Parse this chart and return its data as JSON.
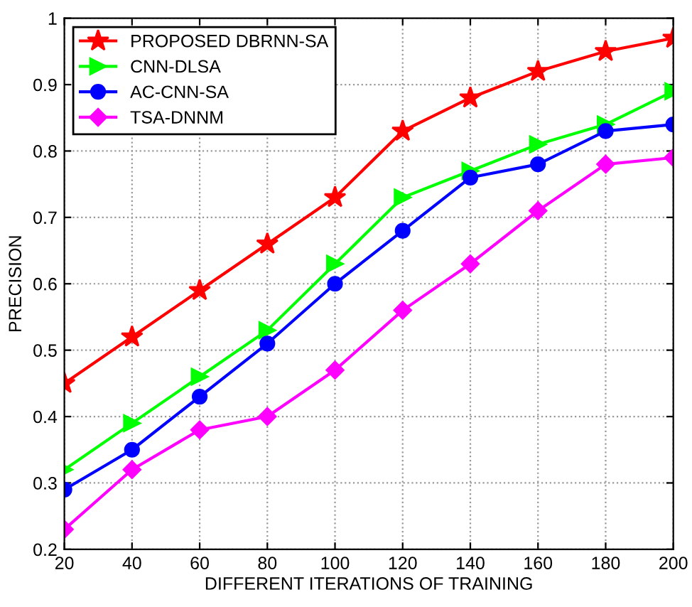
{
  "chart_data": {
    "type": "line",
    "xlabel": "DIFFERENT ITERATIONS OF TRAINING",
    "ylabel": "PRECISION",
    "x": [
      20,
      40,
      60,
      80,
      100,
      120,
      140,
      160,
      180,
      200
    ],
    "series": [
      {
        "name": "PROPOSED DBRNN-SA",
        "color": "#ff0000",
        "marker": "star",
        "values": [
          0.45,
          0.52,
          0.59,
          0.66,
          0.73,
          0.83,
          0.88,
          0.92,
          0.95,
          0.97
        ]
      },
      {
        "name": "CNN-DLSA",
        "color": "#00ff00",
        "marker": "triangle",
        "values": [
          0.32,
          0.39,
          0.46,
          0.53,
          0.63,
          0.73,
          0.77,
          0.81,
          0.84,
          0.89
        ]
      },
      {
        "name": "AC-CNN-SA",
        "color": "#0000ff",
        "marker": "circle",
        "values": [
          0.29,
          0.35,
          0.43,
          0.51,
          0.6,
          0.68,
          0.76,
          0.78,
          0.83,
          0.84
        ]
      },
      {
        "name": "TSA-DNNM",
        "color": "#ff00ff",
        "marker": "diamond",
        "values": [
          0.23,
          0.32,
          0.38,
          0.4,
          0.47,
          0.56,
          0.63,
          0.71,
          0.78,
          0.79
        ]
      }
    ],
    "xlim": [
      20,
      200
    ],
    "xticks": [
      20,
      40,
      60,
      80,
      100,
      120,
      140,
      160,
      180,
      200
    ],
    "ylim": [
      0.2,
      1
    ],
    "yticks": [
      0.2,
      0.3,
      0.4,
      0.5,
      0.6,
      0.7,
      0.8,
      0.9,
      1
    ],
    "grid": true,
    "legend": "top left",
    "line_style": "solid"
  }
}
